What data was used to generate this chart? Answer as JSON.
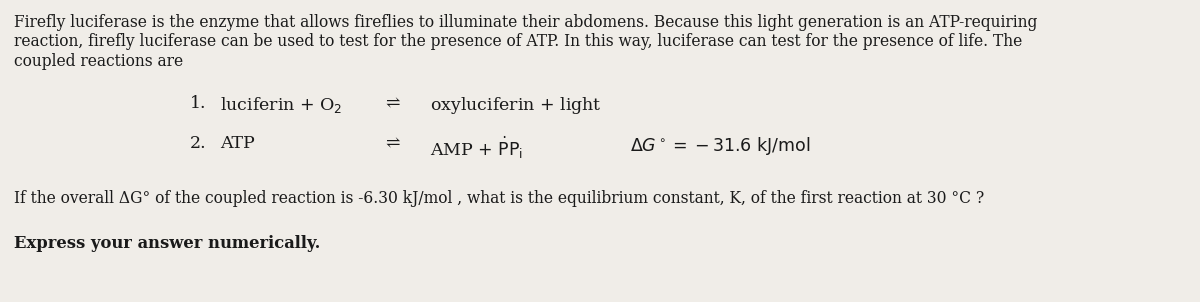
{
  "bg_color": "#f0ede8",
  "text_color": "#1a1a1a",
  "para_line1": "Firefly luciferase is the enzyme that allows fireflies to illuminate their abdomens. Because this light generation is an ATP-requiring",
  "para_line2": "reaction, firefly luciferase can be used to test for the presence of ATP. In this way, luciferase can test for the presence of life. The",
  "para_line3": "coupled reactions are",
  "question": "If the overall ΔG° of the coupled reaction is -6.30 kJ/mol , what is the equilibrium constant, K, of the first reaction at 30 °C ?",
  "answer_label": "Express your answer numerically.",
  "font_size_body": 11.2,
  "font_size_reaction": 12.5,
  "font_size_question": 11.2,
  "font_size_answer": 11.8
}
